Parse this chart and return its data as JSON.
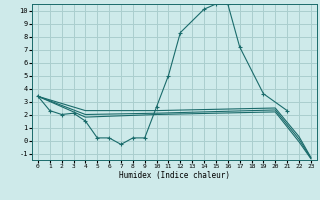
{
  "background_color": "#ceeaea",
  "grid_color": "#aacece",
  "line_color": "#1a6b6b",
  "xlim": [
    -0.5,
    23.5
  ],
  "ylim": [
    -1.5,
    10.5
  ],
  "xlabel": "Humidex (Indice chaleur)",
  "xticks": [
    0,
    1,
    2,
    3,
    4,
    5,
    6,
    7,
    8,
    9,
    10,
    11,
    12,
    13,
    14,
    15,
    16,
    17,
    18,
    19,
    20,
    21,
    22,
    23
  ],
  "yticks": [
    -1,
    0,
    1,
    2,
    3,
    4,
    5,
    6,
    7,
    8,
    9,
    10
  ],
  "main_line": {
    "x": [
      0,
      1,
      2,
      3,
      4,
      5,
      6,
      7,
      8,
      9,
      10,
      11,
      12,
      14,
      15,
      16,
      17,
      19,
      21
    ],
    "y": [
      3.4,
      2.3,
      2.0,
      2.1,
      1.5,
      0.2,
      0.2,
      -0.3,
      0.2,
      0.2,
      2.6,
      5.0,
      8.3,
      10.1,
      10.5,
      10.5,
      7.2,
      3.6,
      2.3
    ]
  },
  "trend_lines": [
    {
      "x": [
        0,
        4,
        10,
        20,
        22,
        23
      ],
      "y": [
        3.4,
        2.3,
        2.3,
        2.5,
        0.3,
        -1.3
      ]
    },
    {
      "x": [
        0,
        4,
        10,
        20,
        22,
        23
      ],
      "y": [
        3.4,
        1.8,
        2.0,
        2.2,
        -0.1,
        -1.4
      ]
    },
    {
      "x": [
        0,
        4,
        10,
        20,
        22,
        23
      ],
      "y": [
        3.4,
        2.0,
        2.1,
        2.35,
        0.1,
        -1.35
      ]
    }
  ]
}
